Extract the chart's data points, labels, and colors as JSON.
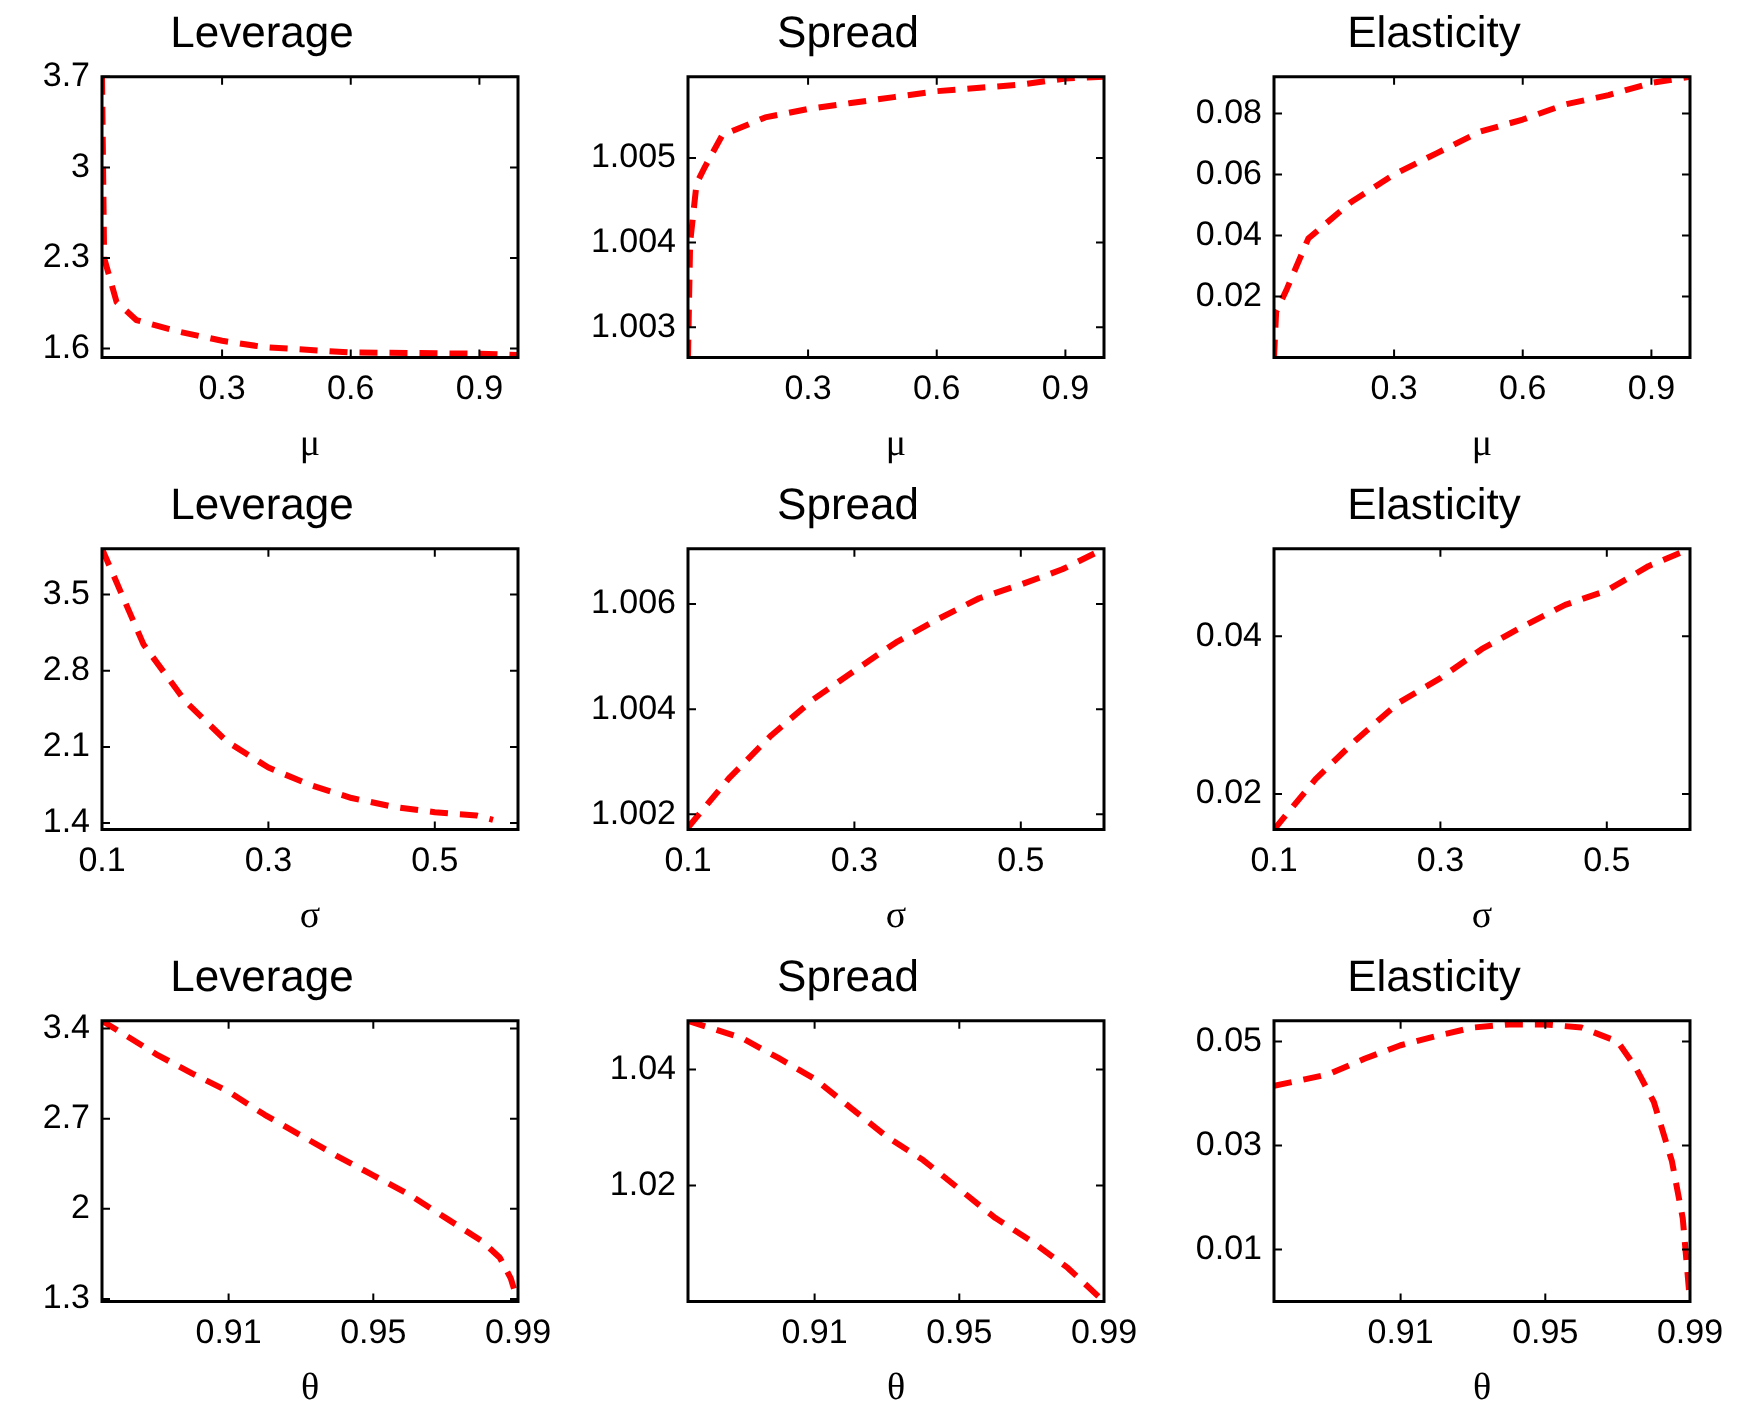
{
  "chart_data": [
    {
      "type": "line",
      "title": "Leverage",
      "xlabel": "μ",
      "x": [
        0.02,
        0.025,
        0.054,
        0.1,
        0.2,
        0.3,
        0.4,
        0.6,
        0.9,
        0.99
      ],
      "series": [
        {
          "color": "#ff0000",
          "values": [
            3.7,
            2.3,
            1.96,
            1.82,
            1.73,
            1.66,
            1.61,
            1.57,
            1.56,
            1.55
          ]
        }
      ],
      "xlim": [
        0.02,
        0.99
      ],
      "ylim": [
        1.53,
        3.7
      ],
      "xticks": [
        0.3,
        0.6,
        0.9
      ],
      "yticks": [
        1.6,
        2.3,
        3,
        3.7
      ],
      "line_style": "dashed",
      "marker": "none",
      "grid": false,
      "legend": false
    },
    {
      "type": "line",
      "title": "Spread",
      "xlabel": "μ",
      "x": [
        0.02,
        0.025,
        0.04,
        0.06,
        0.1,
        0.2,
        0.3,
        0.4,
        0.5,
        0.6,
        0.7,
        0.8,
        0.9,
        0.99
      ],
      "series": [
        {
          "color": "#ff0000",
          "values": [
            1.00264,
            1.004,
            1.0047,
            1.0049,
            1.00527,
            1.00548,
            1.00558,
            1.00565,
            1.00572,
            1.00579,
            1.00583,
            1.00587,
            1.00594,
            1.00596
          ]
        }
      ],
      "xlim": [
        0.02,
        0.99
      ],
      "ylim": [
        1.00264,
        1.00596
      ],
      "xticks": [
        0.3,
        0.6,
        0.9
      ],
      "yticks": [
        1.003,
        1.004,
        1.005
      ],
      "line_style": "dashed",
      "marker": "none",
      "grid": false,
      "legend": false
    },
    {
      "type": "line",
      "title": "Elasticity",
      "xlabel": "μ",
      "x": [
        0.02,
        0.025,
        0.05,
        0.1,
        0.2,
        0.3,
        0.4,
        0.5,
        0.6,
        0.7,
        0.8,
        0.9,
        0.99
      ],
      "series": [
        {
          "color": "#ff0000",
          "values": [
            0,
            0.015,
            0.0225,
            0.039,
            0.051,
            0.06,
            0.067,
            0.074,
            0.078,
            0.083,
            0.086,
            0.09,
            0.092
          ]
        }
      ],
      "xlim": [
        0.02,
        0.99
      ],
      "ylim": [
        0,
        0.092
      ],
      "xticks": [
        0.3,
        0.6,
        0.9
      ],
      "yticks": [
        0.02,
        0.04,
        0.06,
        0.08
      ],
      "line_style": "dashed",
      "marker": "none",
      "grid": false,
      "legend": false
    },
    {
      "type": "line",
      "title": "Leverage",
      "xlabel": "σ",
      "x": [
        0.1,
        0.15,
        0.2,
        0.25,
        0.3,
        0.35,
        0.4,
        0.45,
        0.5,
        0.55,
        0.57
      ],
      "series": [
        {
          "color": "#ff0000",
          "values": [
            3.92,
            3.04,
            2.52,
            2.15,
            1.91,
            1.75,
            1.63,
            1.55,
            1.5,
            1.47,
            1.43
          ]
        }
      ],
      "xlim": [
        0.1,
        0.6
      ],
      "ylim": [
        1.34,
        3.92
      ],
      "xticks": [
        0.1,
        0.3,
        0.5
      ],
      "yticks": [
        1.4,
        2.1,
        2.8,
        3.5
      ],
      "line_style": "dashed",
      "marker": "none",
      "grid": false,
      "legend": false
    },
    {
      "type": "line",
      "title": "Spread",
      "xlabel": "σ",
      "x": [
        0.1,
        0.15,
        0.2,
        0.25,
        0.3,
        0.35,
        0.4,
        0.45,
        0.5,
        0.55,
        0.6
      ],
      "series": [
        {
          "color": "#ff0000",
          "values": [
            1.00175,
            1.0027,
            1.0035,
            1.00418,
            1.00473,
            1.00527,
            1.00571,
            1.00611,
            1.00637,
            1.00666,
            1.00705
          ]
        }
      ],
      "xlim": [
        0.1,
        0.6
      ],
      "ylim": [
        1.00171,
        1.00705
      ],
      "xticks": [
        0.1,
        0.3,
        0.5
      ],
      "yticks": [
        1.002,
        1.004,
        1.006
      ],
      "line_style": "dashed",
      "marker": "none",
      "grid": false,
      "legend": false
    },
    {
      "type": "line",
      "title": "Elasticity",
      "xlabel": "σ",
      "x": [
        0.1,
        0.15,
        0.2,
        0.25,
        0.3,
        0.35,
        0.4,
        0.45,
        0.5,
        0.55,
        0.6
      ],
      "series": [
        {
          "color": "#ff0000",
          "values": [
            0.0155,
            0.0219,
            0.027,
            0.0316,
            0.0347,
            0.0384,
            0.0413,
            0.044,
            0.0458,
            0.0489,
            0.0511
          ]
        }
      ],
      "xlim": [
        0.1,
        0.6
      ],
      "ylim": [
        0.0155,
        0.0511
      ],
      "xticks": [
        0.1,
        0.3,
        0.5
      ],
      "yticks": [
        0.02,
        0.04
      ],
      "line_style": "dashed",
      "marker": "none",
      "grid": false,
      "legend": false
    },
    {
      "type": "line",
      "title": "Leverage",
      "xlabel": "θ",
      "x": [
        0.875,
        0.89,
        0.9,
        0.91,
        0.92,
        0.93,
        0.94,
        0.95,
        0.96,
        0.97,
        0.98,
        0.985,
        0.988,
        0.99
      ],
      "series": [
        {
          "color": "#ff0000",
          "values": [
            3.46,
            3.2,
            3.05,
            2.91,
            2.73,
            2.57,
            2.41,
            2.26,
            2.11,
            1.93,
            1.75,
            1.62,
            1.46,
            1.28
          ]
        }
      ],
      "xlim": [
        0.875,
        0.99
      ],
      "ylim": [
        1.28,
        3.46
      ],
      "xticks": [
        0.91,
        0.95,
        0.99
      ],
      "yticks": [
        1.3,
        2,
        2.7,
        3.4
      ],
      "line_style": "dashed",
      "marker": "none",
      "grid": false,
      "legend": false
    },
    {
      "type": "line",
      "title": "Spread",
      "xlabel": "θ",
      "x": [
        0.875,
        0.89,
        0.9,
        0.91,
        0.92,
        0.93,
        0.94,
        0.95,
        0.96,
        0.97,
        0.98,
        0.99
      ],
      "series": [
        {
          "color": "#ff0000",
          "values": [
            1.0484,
            1.0454,
            1.042,
            1.0384,
            1.0334,
            1.0284,
            1.0244,
            1.0194,
            1.0144,
            1.0104,
            1.0058,
            1.0
          ]
        }
      ],
      "xlim": [
        0.875,
        0.99
      ],
      "ylim": [
        1.0,
        1.0484
      ],
      "xticks": [
        0.91,
        0.95,
        0.99
      ],
      "yticks": [
        1.02,
        1.04
      ],
      "line_style": "dashed",
      "marker": "none",
      "grid": false,
      "legend": false
    },
    {
      "type": "line",
      "title": "Elasticity",
      "xlabel": "θ",
      "x": [
        0.875,
        0.89,
        0.9,
        0.91,
        0.92,
        0.93,
        0.94,
        0.95,
        0.96,
        0.97,
        0.975,
        0.98,
        0.985,
        0.988,
        0.99
      ],
      "series": [
        {
          "color": "#ff0000",
          "values": [
            0.0415,
            0.0437,
            0.0467,
            0.0493,
            0.0511,
            0.0527,
            0.0533,
            0.0533,
            0.0527,
            0.05,
            0.045,
            0.0384,
            0.027,
            0.016,
            0
          ]
        }
      ],
      "xlim": [
        0.875,
        0.99
      ],
      "ylim": [
        0,
        0.054
      ],
      "xticks": [
        0.91,
        0.95,
        0.99
      ],
      "yticks": [
        0.01,
        0.03,
        0.05
      ],
      "line_style": "dashed",
      "marker": "none",
      "grid": false,
      "legend": false
    }
  ]
}
